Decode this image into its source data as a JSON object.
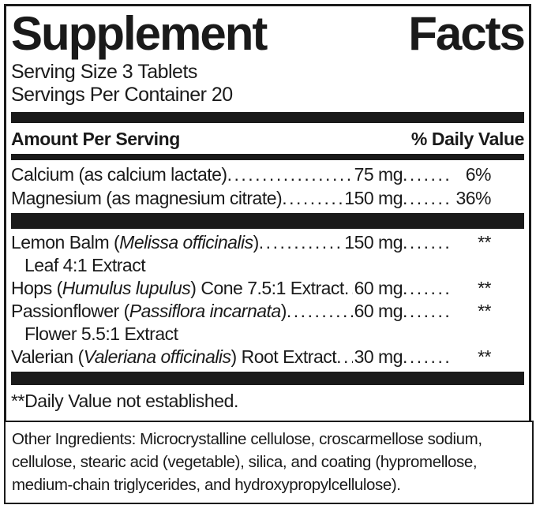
{
  "colors": {
    "ink": "#1a1a1a",
    "background": "#ffffff"
  },
  "panel": {
    "title": "Supplement Facts",
    "serving_size": "Serving Size 3 Tablets",
    "servings_per_container": "Servings Per Container 20",
    "header": {
      "amount_label": "Amount Per Serving",
      "dv_label": "% Daily Value"
    },
    "minerals": [
      {
        "name": "Calcium (as calcium lactate)",
        "amount": "75 mg",
        "dv": "6%"
      },
      {
        "name": "Magnesium (as magnesium citrate)",
        "amount": "150 mg",
        "dv": "36%"
      }
    ],
    "botanicals": [
      {
        "name_pre": "Lemon Balm (",
        "latin": "Melissa officinalis",
        "name_post": ")",
        "amount": "150 mg",
        "dv": "**",
        "subline": "Leaf 4:1 Extract"
      },
      {
        "name_pre": "Hops (",
        "latin": "Humulus lupulus",
        "name_post": ") Cone 7.5:1 Extract",
        "amount": "60 mg",
        "dv": "**"
      },
      {
        "name_pre": "Passionflower (",
        "latin": "Passiflora incarnata",
        "name_post": ")",
        "amount": "60 mg",
        "dv": "**",
        "subline": "Flower 5.5:1 Extract"
      },
      {
        "name_pre": "Valerian (",
        "latin": "Valeriana officinalis",
        "name_post": ") Root Extract",
        "amount": "30 mg",
        "dv": "**"
      }
    ],
    "footnote": "**Daily Value not established."
  },
  "other_ingredients": {
    "text": "Other Ingredients: Microcrystalline cellulose, croscarmellose sodium, cellulose, stearic acid (vegetable), silica, and coating (hypromellose, medium-chain triglycerides, and hydroxypropylcellulose)."
  }
}
